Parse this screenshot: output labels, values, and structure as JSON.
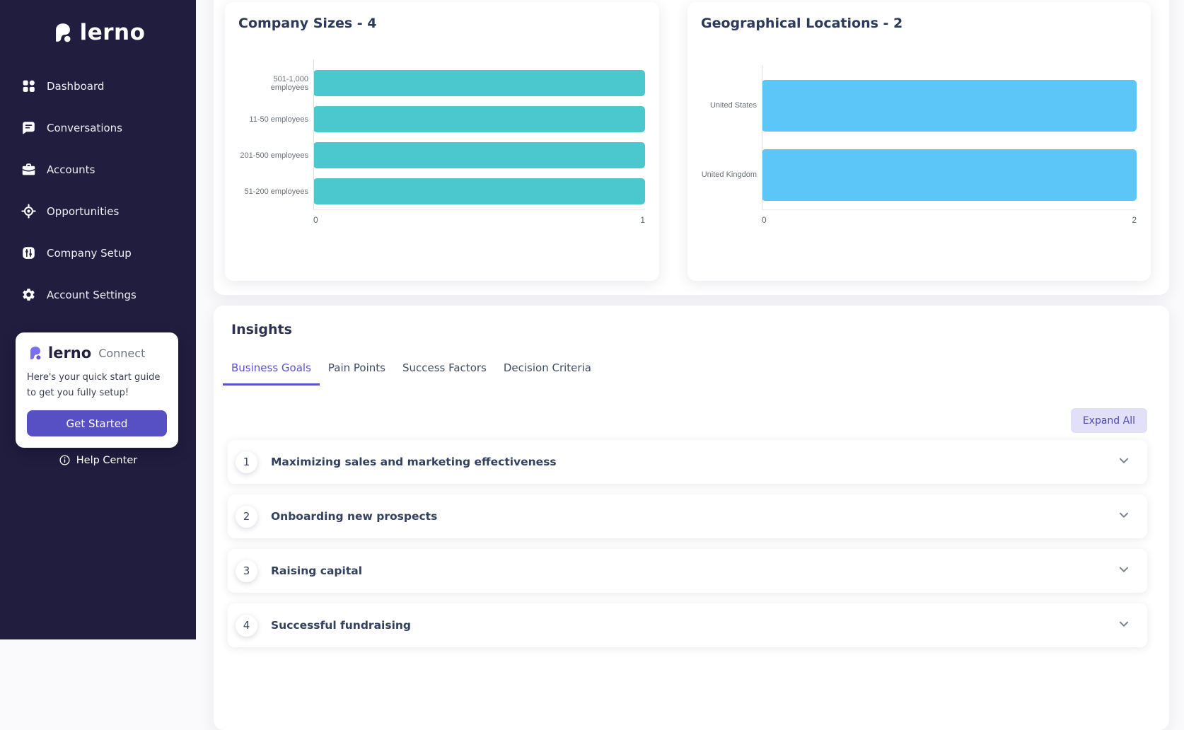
{
  "brand": {
    "name": "lerno"
  },
  "colors": {
    "sidebar_bg": "#211d3e",
    "accent_purple": "#5650c4",
    "active_tab": "#5a52c8",
    "teal_bar": "#4bc8ce",
    "blue_bar": "#5dc6f9"
  },
  "sidebar": {
    "items": [
      {
        "label": "Dashboard",
        "icon": "dashboard-icon"
      },
      {
        "label": "Conversations",
        "icon": "conversations-icon"
      },
      {
        "label": "Accounts",
        "icon": "accounts-icon"
      },
      {
        "label": "Opportunities",
        "icon": "opportunities-icon"
      },
      {
        "label": "Company Setup",
        "icon": "company-setup-icon"
      },
      {
        "label": "Account Settings",
        "icon": "account-settings-icon"
      }
    ],
    "connect_card": {
      "brand": "lerno",
      "suffix": "Connect",
      "description": "Here's your quick start guide to get you fully setup!",
      "button": "Get Started"
    },
    "help_center": "Help Center"
  },
  "chart_data": [
    {
      "type": "bar",
      "orientation": "horizontal",
      "title": "Company Sizes - 4",
      "categories": [
        "501-1,000 employees",
        "11-50 employees",
        "201-500 employees",
        "51-200 employees"
      ],
      "values": [
        1,
        1,
        1,
        1
      ],
      "xlim": [
        0,
        1
      ],
      "x_ticks": [
        "0",
        "1"
      ],
      "bar_color": "#4bc8ce",
      "grid": false,
      "legend": false
    },
    {
      "type": "bar",
      "orientation": "horizontal",
      "title": "Geographical Locations - 2",
      "categories": [
        "United States",
        "United Kingdom"
      ],
      "values": [
        2,
        2
      ],
      "xlim": [
        0,
        2
      ],
      "x_ticks": [
        "0",
        "2"
      ],
      "bar_color": "#5dc6f9",
      "grid": false,
      "legend": false
    }
  ],
  "insights": {
    "title": "Insights",
    "tabs": [
      "Business Goals",
      "Pain Points",
      "Success Factors",
      "Decision Criteria"
    ],
    "active_tab": "Business Goals",
    "expand_all": "Expand All",
    "items": [
      {
        "number": "1",
        "title": "Maximizing sales and marketing effectiveness"
      },
      {
        "number": "2",
        "title": "Onboarding new prospects"
      },
      {
        "number": "3",
        "title": "Raising capital"
      },
      {
        "number": "4",
        "title": "Successful fundraising"
      }
    ]
  }
}
